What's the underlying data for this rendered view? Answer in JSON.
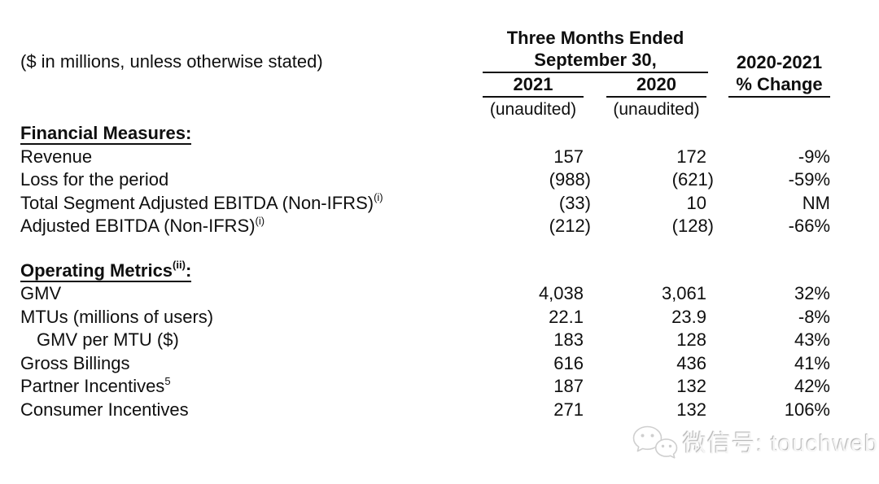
{
  "note": "($ in millions, unless otherwise stated)",
  "header": {
    "period_line1": "Three Months Ended",
    "period_line2": "September 30,",
    "year_2021": "2021",
    "year_2020": "2020",
    "change_line1": "2020-2021",
    "change_line2": "% Change",
    "unaudited_2021": "(unaudited)",
    "unaudited_2020": "(unaudited)"
  },
  "table": {
    "sections": [
      {
        "title": "Financial Measures",
        "title_sup": "",
        "title_colon": ":",
        "rows": [
          {
            "label": "Revenue",
            "sup": "",
            "indent": false,
            "v2021": "157",
            "v2020": "172",
            "change": "-9%"
          },
          {
            "label": "Loss for the period",
            "sup": "",
            "indent": false,
            "v2021": "(988)",
            "v2020": "(621)",
            "change": "-59%"
          },
          {
            "label": "Total Segment Adjusted EBITDA (Non-IFRS)",
            "sup": "(i)",
            "indent": false,
            "v2021": "(33)",
            "v2020": "10",
            "change": "NM"
          },
          {
            "label": "Adjusted EBITDA (Non-IFRS)",
            "sup": "(i)",
            "indent": false,
            "v2021": "(212)",
            "v2020": "(128)",
            "change": "-66%"
          }
        ]
      },
      {
        "title": "Operating Metrics",
        "title_sup": "(ii)",
        "title_colon": ":",
        "rows": [
          {
            "label": "GMV",
            "sup": "",
            "indent": false,
            "v2021": "4,038",
            "v2020": "3,061",
            "change": "32%"
          },
          {
            "label": "MTUs (millions of users)",
            "sup": "",
            "indent": false,
            "v2021": "22.1",
            "v2020": "23.9",
            "change": "-8%"
          },
          {
            "label": "GMV per MTU ($)",
            "sup": "",
            "indent": true,
            "v2021": "183",
            "v2020": "128",
            "change": "43%"
          },
          {
            "label": "Gross Billings",
            "sup": "",
            "indent": false,
            "v2021": "616",
            "v2020": "436",
            "change": "41%"
          },
          {
            "label": "Partner Incentives",
            "sup": "5",
            "indent": false,
            "v2021": "187",
            "v2020": "132",
            "change": "42%"
          },
          {
            "label": "Consumer Incentives",
            "sup": "",
            "indent": false,
            "v2021": "271",
            "v2020": "132",
            "change": "106%"
          }
        ]
      }
    ]
  },
  "watermark": {
    "icon": "wechat-icon",
    "text": "微信号: touchweb"
  },
  "colors": {
    "text": "#0f0f0f",
    "background": "#ffffff",
    "watermark_gray": "#c6c6c6"
  }
}
